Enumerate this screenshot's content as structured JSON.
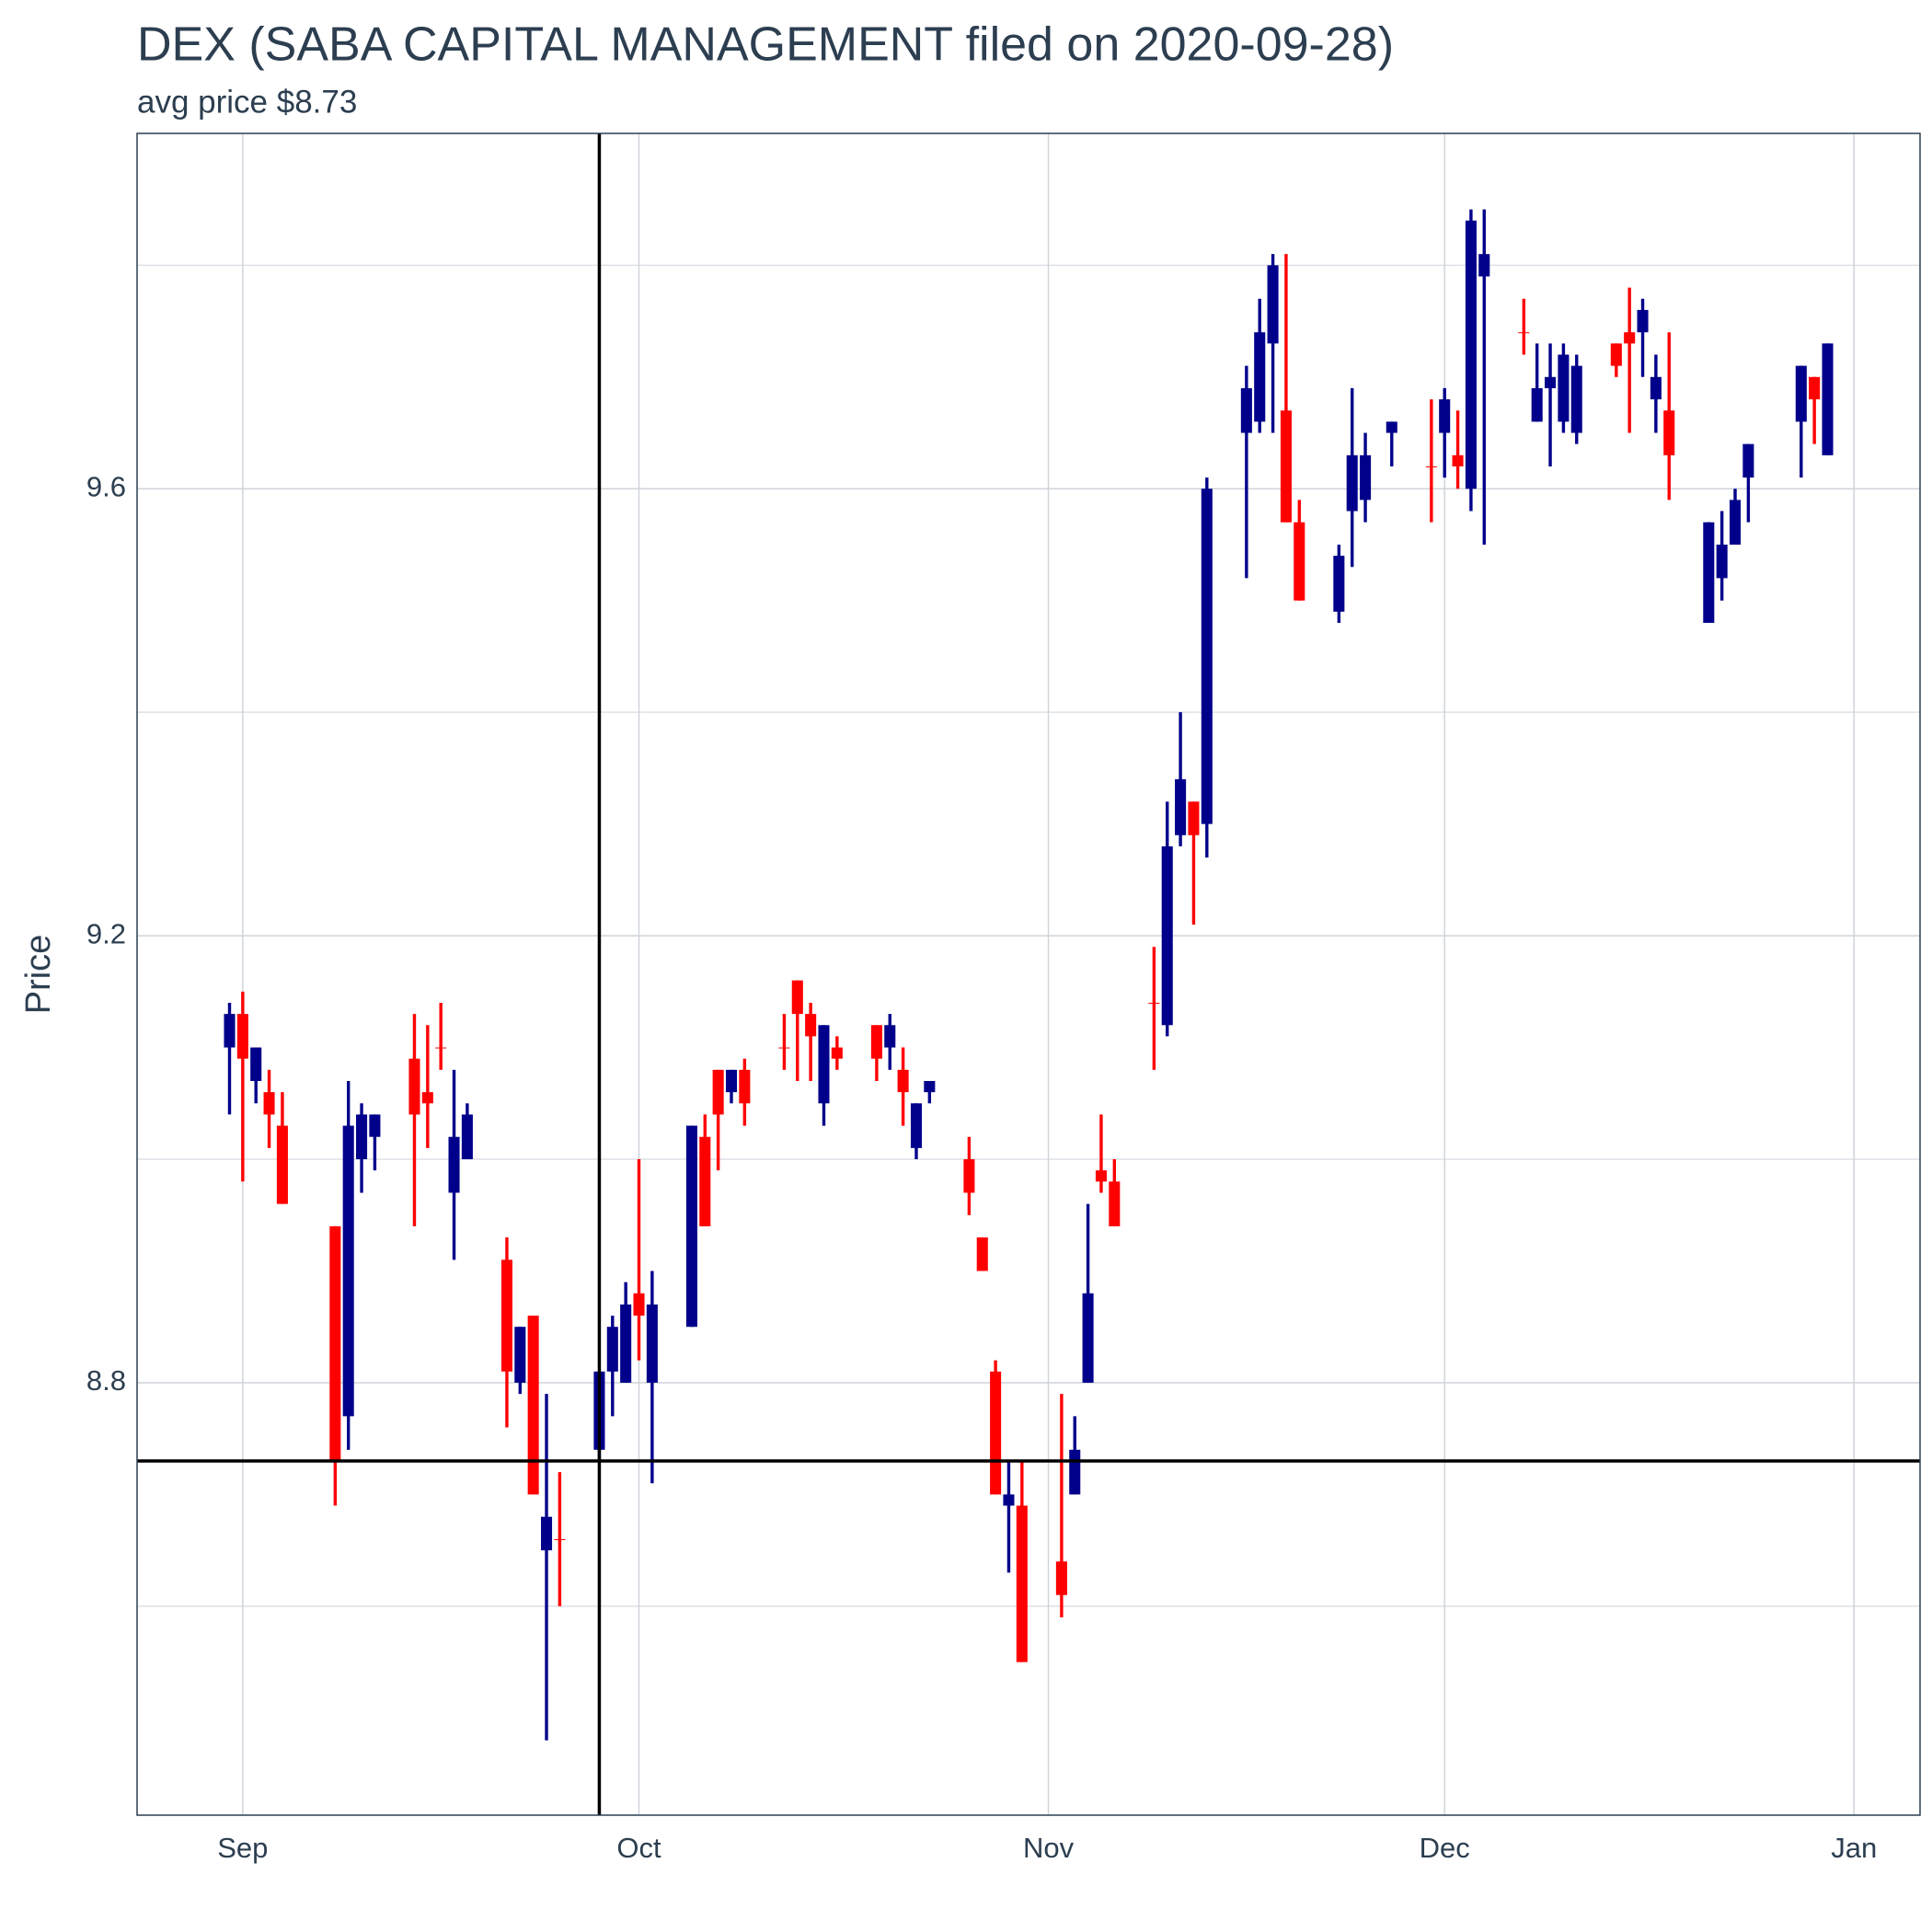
{
  "chart_data": {
    "type": "candlestick",
    "title": "DEX (SABA CAPITAL MANAGEMENT filed on 2020-09-28)",
    "subtitle": "avg price $8.73",
    "ylabel": "Price",
    "x": [
      "2020-08-31",
      "2020-09-01",
      "2020-09-02",
      "2020-09-03",
      "2020-09-04",
      "2020-09-08",
      "2020-09-09",
      "2020-09-10",
      "2020-09-11",
      "2020-09-14",
      "2020-09-15",
      "2020-09-16",
      "2020-09-17",
      "2020-09-18",
      "2020-09-21",
      "2020-09-22",
      "2020-09-23",
      "2020-09-24",
      "2020-09-25",
      "2020-09-28",
      "2020-09-29",
      "2020-09-30",
      "2020-10-01",
      "2020-10-02",
      "2020-10-05",
      "2020-10-06",
      "2020-10-07",
      "2020-10-08",
      "2020-10-09",
      "2020-10-12",
      "2020-10-13",
      "2020-10-14",
      "2020-10-15",
      "2020-10-16",
      "2020-10-19",
      "2020-10-20",
      "2020-10-21",
      "2020-10-22",
      "2020-10-23",
      "2020-10-26",
      "2020-10-27",
      "2020-10-28",
      "2020-10-29",
      "2020-10-30",
      "2020-11-02",
      "2020-11-03",
      "2020-11-04",
      "2020-11-05",
      "2020-11-06",
      "2020-11-09",
      "2020-11-10",
      "2020-11-11",
      "2020-11-12",
      "2020-11-13",
      "2020-11-16",
      "2020-11-17",
      "2020-11-18",
      "2020-11-19",
      "2020-11-20",
      "2020-11-23",
      "2020-11-24",
      "2020-11-25",
      "2020-11-27",
      "2020-11-30",
      "2020-12-01",
      "2020-12-02",
      "2020-12-03",
      "2020-12-04",
      "2020-12-07",
      "2020-12-08",
      "2020-12-09",
      "2020-12-10",
      "2020-12-11",
      "2020-12-14",
      "2020-12-15",
      "2020-12-16",
      "2020-12-17",
      "2020-12-18",
      "2020-12-21",
      "2020-12-22",
      "2020-12-23",
      "2020-12-24",
      "2020-12-28",
      "2020-12-29",
      "2020-12-30"
    ],
    "open": [
      9.1,
      9.13,
      9.07,
      9.06,
      9.03,
      8.94,
      8.77,
      9.0,
      9.02,
      9.09,
      9.06,
      9.1,
      8.97,
      9.0,
      8.91,
      8.8,
      8.86,
      8.65,
      8.66,
      8.74,
      8.81,
      8.8,
      8.88,
      8.8,
      8.85,
      9.02,
      9.08,
      9.06,
      9.08,
      9.1,
      9.16,
      9.13,
      9.05,
      9.1,
      9.12,
      9.1,
      9.08,
      9.01,
      9.06,
      9.0,
      8.93,
      8.81,
      8.69,
      8.69,
      8.64,
      8.7,
      8.8,
      8.99,
      8.98,
      9.14,
      9.12,
      9.29,
      9.32,
      9.3,
      9.65,
      9.66,
      9.73,
      9.67,
      9.57,
      9.49,
      9.58,
      9.59,
      9.65,
      9.62,
      9.65,
      9.63,
      9.6,
      9.79,
      9.74,
      9.66,
      9.69,
      9.66,
      9.65,
      9.73,
      9.74,
      9.74,
      9.68,
      9.67,
      9.48,
      9.52,
      9.55,
      9.61,
      9.66,
      9.7,
      9.63
    ],
    "high": [
      9.14,
      9.15,
      9.1,
      9.08,
      9.06,
      8.94,
      9.07,
      9.05,
      9.04,
      9.13,
      9.12,
      9.14,
      9.08,
      9.05,
      8.93,
      8.85,
      8.86,
      8.79,
      8.72,
      8.81,
      8.86,
      8.89,
      9.0,
      8.9,
      9.03,
      9.04,
      9.08,
      9.08,
      9.09,
      9.13,
      9.16,
      9.14,
      9.12,
      9.11,
      9.12,
      9.13,
      9.1,
      9.05,
      9.07,
      9.02,
      8.93,
      8.82,
      8.73,
      8.73,
      8.79,
      8.77,
      8.96,
      9.04,
      9.0,
      9.19,
      9.32,
      9.4,
      9.32,
      9.61,
      9.71,
      9.77,
      9.81,
      9.81,
      9.59,
      9.55,
      9.69,
      9.65,
      9.66,
      9.68,
      9.69,
      9.67,
      9.85,
      9.85,
      9.77,
      9.73,
      9.73,
      9.73,
      9.72,
      9.73,
      9.78,
      9.77,
      9.72,
      9.74,
      9.57,
      9.58,
      9.6,
      9.64,
      9.71,
      9.7,
      9.73
    ],
    "low": [
      9.04,
      8.98,
      9.05,
      9.01,
      8.96,
      8.69,
      8.74,
      8.97,
      8.99,
      8.94,
      9.01,
      9.08,
      8.91,
      9.0,
      8.76,
      8.79,
      8.7,
      8.48,
      8.6,
      8.73,
      8.77,
      8.8,
      8.82,
      8.71,
      8.85,
      8.94,
      8.99,
      9.05,
      9.03,
      9.08,
      9.07,
      9.07,
      9.03,
      9.08,
      9.07,
      9.08,
      9.03,
      9.0,
      9.05,
      8.95,
      8.9,
      8.7,
      8.63,
      8.55,
      8.59,
      8.7,
      8.8,
      8.97,
      8.94,
      9.08,
      9.11,
      9.28,
      9.21,
      9.27,
      9.52,
      9.65,
      9.65,
      9.57,
      9.5,
      9.48,
      9.53,
      9.57,
      9.62,
      9.57,
      9.61,
      9.6,
      9.58,
      9.55,
      9.72,
      9.66,
      9.62,
      9.65,
      9.64,
      9.7,
      9.65,
      9.7,
      9.65,
      9.59,
      9.48,
      9.5,
      9.55,
      9.57,
      9.61,
      9.64,
      9.63
    ],
    "close": [
      9.13,
      9.09,
      9.1,
      9.04,
      8.96,
      8.73,
      9.03,
      9.04,
      9.04,
      9.04,
      9.05,
      9.1,
      9.02,
      9.04,
      8.81,
      8.85,
      8.7,
      8.68,
      8.66,
      8.81,
      8.85,
      8.87,
      8.86,
      8.87,
      9.03,
      8.94,
      9.04,
      9.08,
      9.05,
      9.1,
      9.13,
      9.11,
      9.12,
      9.09,
      9.09,
      9.12,
      9.06,
      9.05,
      9.07,
      8.97,
      8.9,
      8.7,
      8.7,
      8.55,
      8.61,
      8.74,
      8.88,
      8.98,
      8.94,
      9.14,
      9.28,
      9.34,
      9.29,
      9.6,
      9.69,
      9.74,
      9.8,
      9.57,
      9.5,
      9.54,
      9.63,
      9.63,
      9.66,
      9.62,
      9.68,
      9.62,
      9.84,
      9.81,
      9.74,
      9.69,
      9.7,
      9.72,
      9.71,
      9.71,
      9.73,
      9.76,
      9.7,
      9.63,
      9.57,
      9.55,
      9.59,
      9.64,
      9.71,
      9.68,
      9.73
    ],
    "up_color": "#00008b",
    "down_color": "#ff0000",
    "xlim": [
      "2020-08-24",
      "2021-01-06"
    ],
    "xticks": [
      {
        "value": "2020-09-01",
        "label": "Sep"
      },
      {
        "value": "2020-10-01",
        "label": "Oct"
      },
      {
        "value": "2020-11-01",
        "label": "Nov"
      },
      {
        "value": "2020-12-01",
        "label": "Dec"
      },
      {
        "value": "2021-01-01",
        "label": "Jan"
      }
    ],
    "ylim": [
      8.413,
      9.918
    ],
    "yticks": [
      8.8,
      9.2,
      9.6
    ],
    "minor_yticks": [
      8.6,
      9.0,
      9.4,
      9.8
    ],
    "grid": true,
    "vline": "2020-09-28",
    "hline": 8.73
  }
}
